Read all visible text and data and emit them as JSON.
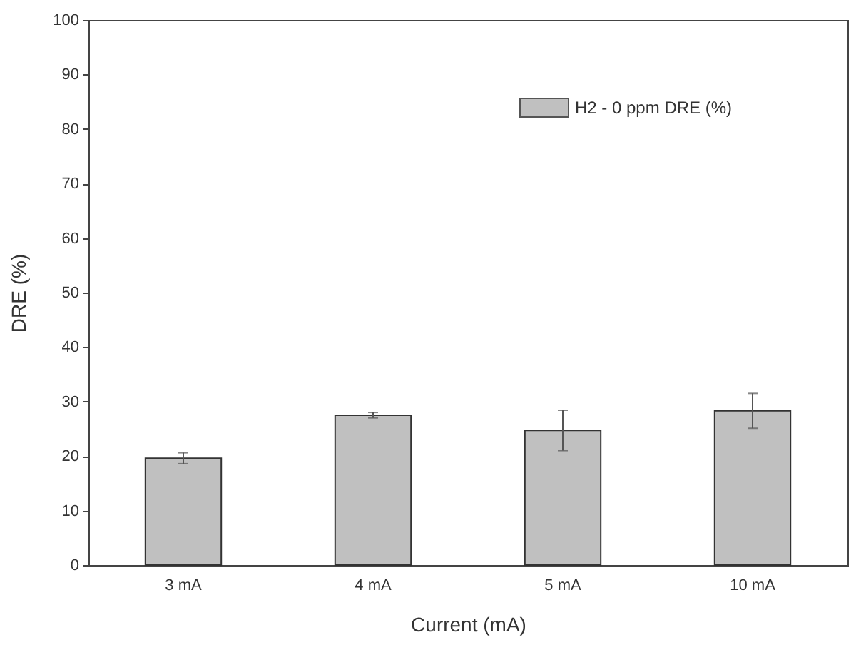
{
  "chart_data": {
    "type": "bar",
    "xlabel": "Current (mA)",
    "ylabel": "DRE (%)",
    "categories": [
      "3 mA",
      "4 mA",
      "5 mA",
      "10 mA"
    ],
    "series": [
      {
        "name": "H2 - 0 ppm DRE (%)",
        "color": "#c0c0c0",
        "values": [
          19.6,
          27.5,
          24.7,
          28.3
        ],
        "errors": [
          1.0,
          0.5,
          3.7,
          3.2
        ]
      }
    ],
    "ylim": [
      0,
      100
    ],
    "yticks": [
      0,
      10,
      20,
      30,
      40,
      50,
      60,
      70,
      80,
      90,
      100
    ],
    "legend": "top right"
  }
}
